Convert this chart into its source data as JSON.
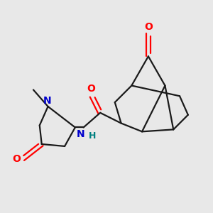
{
  "bg_color": "#e8e8e8",
  "bond_color": "#1a1a1a",
  "o_color": "#ff0000",
  "n_color": "#0000cc",
  "nh_color": "#008080",
  "line_width": 1.6,
  "figsize": [
    3.0,
    3.0
  ],
  "dpi": 100,
  "xlim": [
    0,
    10
  ],
  "ylim": [
    0,
    10
  ]
}
